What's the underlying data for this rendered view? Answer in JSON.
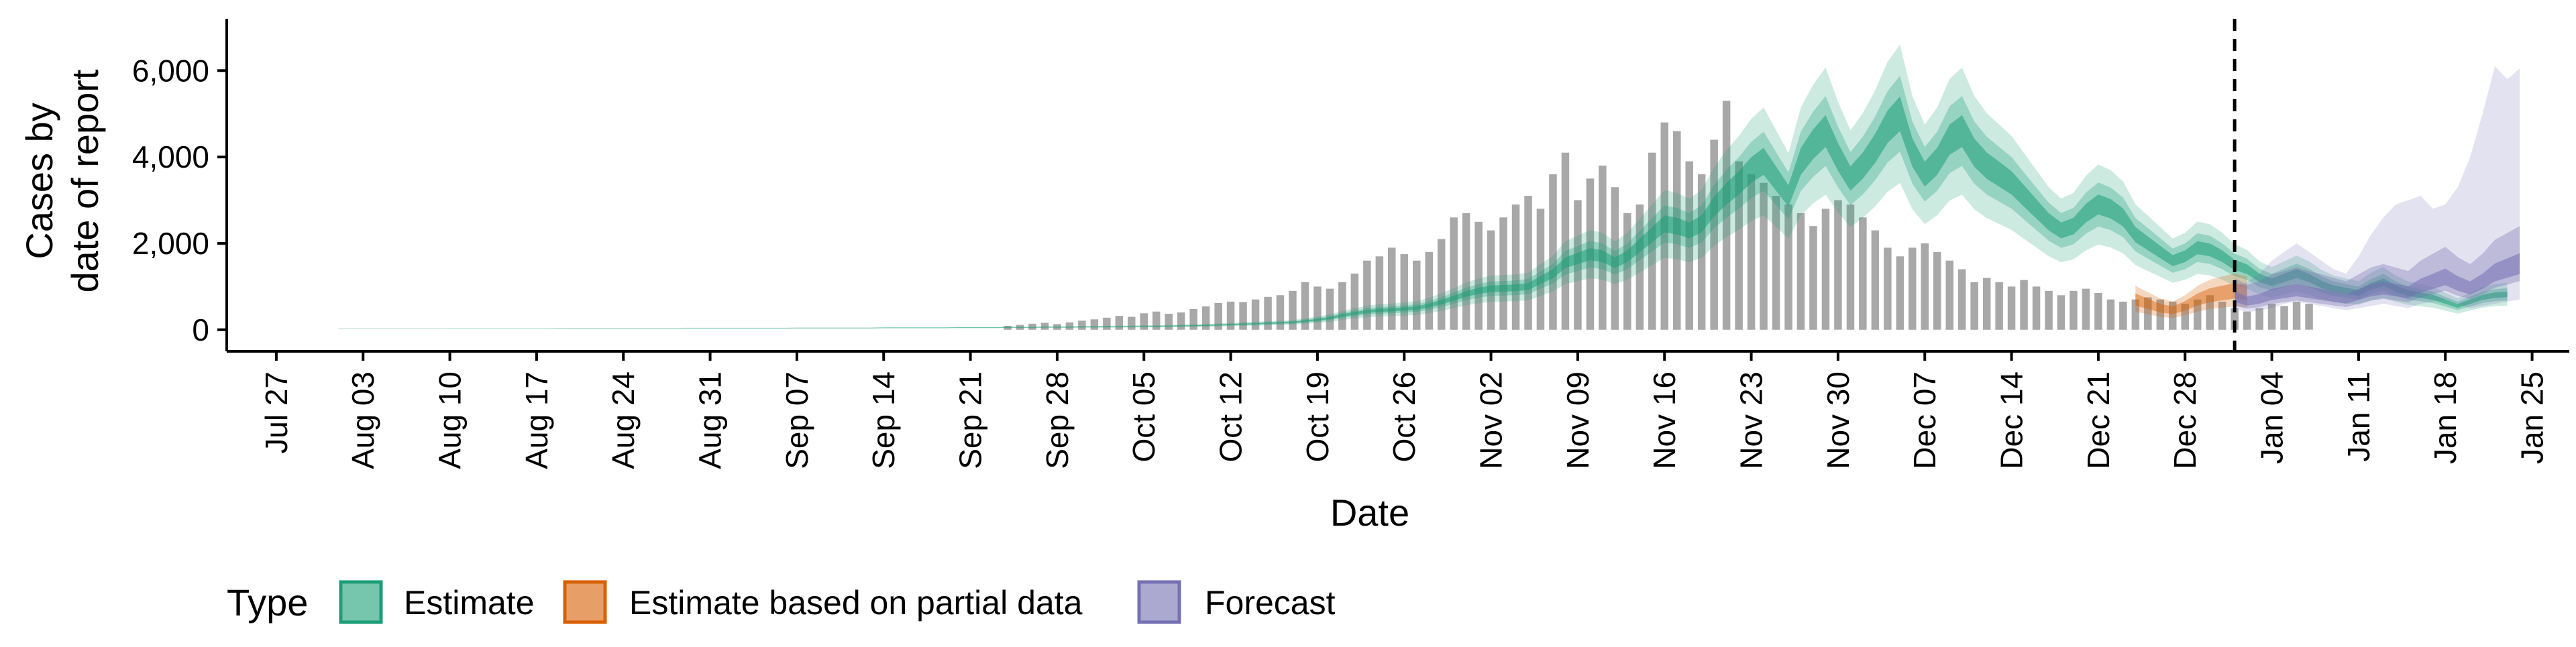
{
  "chart_data": {
    "type": "area",
    "xlabel": "Date",
    "ylabel_lines": [
      "Cases by",
      "date of report"
    ],
    "xlim": [
      "2020-07-23",
      "2021-01-28"
    ],
    "ylim": [
      -500,
      7200
    ],
    "y_ticks": [
      0,
      2000,
      4000,
      6000
    ],
    "y_tick_labels": [
      "0",
      "2,000",
      "4,000",
      "6,000"
    ],
    "x_ticks": [
      "2020-07-27",
      "2020-08-03",
      "2020-08-10",
      "2020-08-17",
      "2020-08-24",
      "2020-08-31",
      "2020-09-07",
      "2020-09-14",
      "2020-09-21",
      "2020-09-28",
      "2020-10-05",
      "2020-10-12",
      "2020-10-19",
      "2020-10-26",
      "2020-11-02",
      "2020-11-09",
      "2020-11-16",
      "2020-11-23",
      "2020-11-30",
      "2020-12-07",
      "2020-12-14",
      "2020-12-21",
      "2020-12-28",
      "2021-01-04",
      "2021-01-11",
      "2021-01-18",
      "2021-01-25"
    ],
    "x_tick_labels": [
      "Jul 27",
      "Aug 03",
      "Aug 10",
      "Aug 17",
      "Aug 24",
      "Aug 31",
      "Sep 07",
      "Sep 14",
      "Sep 21",
      "Sep 28",
      "Oct 05",
      "Oct 12",
      "Oct 19",
      "Oct 26",
      "Nov 02",
      "Nov 09",
      "Nov 16",
      "Nov 23",
      "Nov 30",
      "Dec 07",
      "Dec 14",
      "Dec 21",
      "Dec 28",
      "Jan 04",
      "Jan 11",
      "Jan 18",
      "Jan 25"
    ],
    "forecast_date": "2021-01-01",
    "grid": false,
    "legend_position": "bottom",
    "legend_title": "Type",
    "series": [
      {
        "name": "Estimate",
        "color": "#1b9e77"
      },
      {
        "name": "Estimate based on partial data",
        "color": "#d95f02"
      },
      {
        "name": "Forecast",
        "color": "#7570b3"
      }
    ],
    "bar_color": "#a8a8a8",
    "reported_cases": {
      "start_date": "2020-09-24",
      "values": [
        90,
        110,
        140,
        160,
        130,
        170,
        210,
        240,
        280,
        320,
        300,
        380,
        420,
        370,
        400,
        480,
        540,
        620,
        650,
        640,
        700,
        760,
        800,
        900,
        1100,
        1000,
        950,
        1100,
        1300,
        1600,
        1700,
        1900,
        1750,
        1600,
        1800,
        2100,
        2600,
        2700,
        2500,
        2300,
        2600,
        2900,
        3100,
        2800,
        3600,
        4100,
        3000,
        3500,
        3800,
        3300,
        2700,
        2900,
        4100,
        4800,
        4600,
        3900,
        3600,
        4400,
        5300,
        3900,
        3600,
        3400,
        3100,
        2900,
        2700,
        2400,
        2800,
        3000,
        2900,
        2600,
        2300,
        1900,
        1700,
        1900,
        2000,
        1800,
        1600,
        1400,
        1100,
        1200,
        1100,
        1000,
        1150,
        1000,
        900,
        800,
        900,
        950,
        850,
        700,
        650,
        700,
        750,
        700,
        650,
        600,
        700,
        800,
        650,
        500,
        420,
        500,
        600,
        550,
        650,
        600
      ]
    },
    "estimate": {
      "start_date": "2020-08-01",
      "median": [
        20,
        20,
        20,
        20,
        20,
        20,
        20,
        20,
        20,
        25,
        25,
        25,
        25,
        25,
        25,
        25,
        25,
        25,
        30,
        30,
        30,
        30,
        30,
        30,
        30,
        30,
        30,
        30,
        35,
        35,
        35,
        35,
        35,
        35,
        35,
        35,
        35,
        40,
        40,
        40,
        40,
        40,
        40,
        40,
        45,
        45,
        45,
        45,
        45,
        45,
        50,
        50,
        50,
        50,
        55,
        55,
        55,
        60,
        60,
        60,
        65,
        65,
        70,
        70,
        75,
        80,
        80,
        85,
        90,
        95,
        100,
        110,
        120,
        130,
        140,
        150,
        160,
        170,
        200,
        230,
        270,
        330,
        380,
        420,
        450,
        460,
        480,
        500,
        560,
        640,
        730,
        830,
        900,
        950,
        960,
        970,
        1000,
        1150,
        1300,
        1550,
        1650,
        1750,
        1700,
        1550,
        1700,
        1950,
        2200,
        2450,
        2400,
        2300,
        2450,
        2850,
        3150,
        3400,
        3700,
        3900,
        3500,
        3100,
        3900,
        4300,
        4600,
        4000,
        3500,
        3800,
        4200,
        4700,
        5000,
        4100,
        3600,
        3900,
        4400,
        4600,
        4100,
        3800,
        3600,
        3400,
        3100,
        2800,
        2500,
        2300,
        2400,
        2700,
        2900,
        2800,
        2600,
        2200,
        2000,
        1800,
        1600,
        1700,
        1900,
        1850,
        1700,
        1500,
        1400,
        1200,
        1100,
        1200,
        1300,
        1200,
        1050,
        950,
        900,
        850,
        1000,
        1100,
        950,
        850,
        800,
        750,
        650,
        550,
        650,
        750,
        800,
        820
      ],
      "inner_halfwidth_frac": 0.08,
      "outer_halfwidth_frac": 0.32
    },
    "partial_estimate": {
      "start_date": "2020-12-24",
      "median": [
        700,
        600,
        500,
        450,
        550,
        700,
        800,
        850,
        900,
        850
      ]
    },
    "forecast": {
      "start_date": "2021-01-01",
      "median": [
        750,
        650,
        700,
        800,
        850,
        900,
        850,
        800,
        750,
        700,
        800,
        900,
        950,
        900,
        850,
        1000,
        1100,
        1200,
        1050,
        950,
        1100,
        1300,
        1400,
        1500
      ],
      "upper_outer": [
        1000,
        1100,
        1300,
        1600,
        1800,
        2000,
        1800,
        1600,
        1400,
        1300,
        1700,
        2200,
        2600,
        2900,
        3000,
        3100,
        2800,
        2900,
        3300,
        4000,
        5000,
        6100,
        5800,
        6050
      ],
      "lower_outer": [
        500,
        400,
        450,
        500,
        600,
        650,
        600,
        550,
        500,
        450,
        500,
        550,
        600,
        550,
        500,
        600,
        650,
        700,
        600,
        500,
        550,
        600,
        650,
        700
      ]
    }
  },
  "axes": {
    "x_title": "Date",
    "y_title_line1": "Cases by",
    "y_title_line2": "date of report"
  },
  "legend": {
    "title": "Type",
    "estimate_label": "Estimate",
    "partial_label": "Estimate based on partial data",
    "forecast_label": "Forecast"
  }
}
